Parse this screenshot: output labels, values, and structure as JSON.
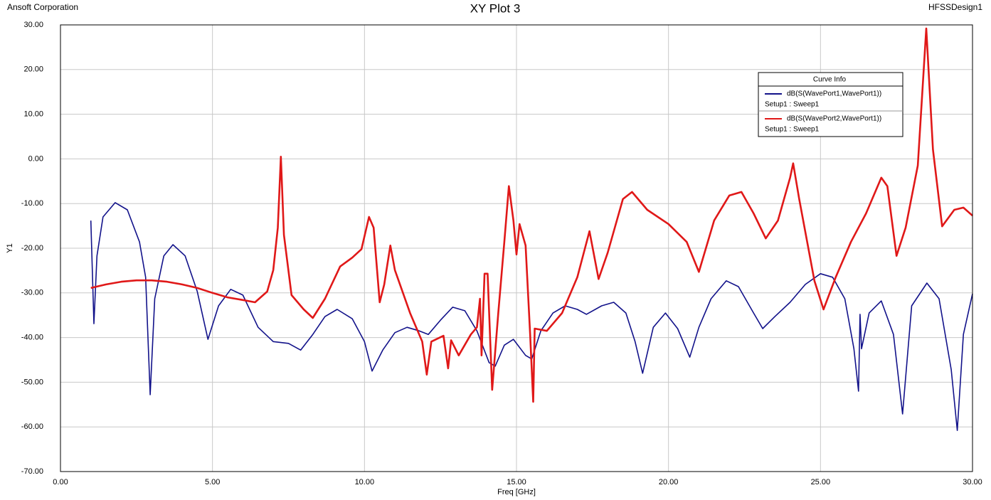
{
  "chart_data": {
    "type": "line",
    "title": "XY Plot 3",
    "company": "Ansoft Corporation",
    "design": "HFSSDesign1",
    "x_label": "Freq [GHz]",
    "y_label": "Y1",
    "legend_title": "Curve Info",
    "grid": true,
    "xlim": [
      0,
      30
    ],
    "ylim": [
      -70,
      30
    ],
    "xticks": [
      {
        "value": 0,
        "label": "0.00"
      },
      {
        "value": 5,
        "label": "5.00"
      },
      {
        "value": 10,
        "label": "10.00"
      },
      {
        "value": 15,
        "label": "15.00"
      },
      {
        "value": 20,
        "label": "20.00"
      },
      {
        "value": 25,
        "label": "25.00"
      },
      {
        "value": 30,
        "label": "30.00"
      }
    ],
    "yticks": [
      {
        "value": -70,
        "label": "-70.00"
      },
      {
        "value": -60,
        "label": "-60.00"
      },
      {
        "value": -50,
        "label": "-50.00"
      },
      {
        "value": -40,
        "label": "-40.00"
      },
      {
        "value": -30,
        "label": "-30.00"
      },
      {
        "value": -20,
        "label": "-20.00"
      },
      {
        "value": -10,
        "label": "-10.00"
      },
      {
        "value": 0,
        "label": "0.00"
      },
      {
        "value": 10,
        "label": "10.00"
      },
      {
        "value": 20,
        "label": "20.00"
      },
      {
        "value": 30,
        "label": "30.00"
      }
    ],
    "series": [
      {
        "name": "dB(S(WavePort1,WavePort1))",
        "setup": "Setup1 : Sweep1",
        "color": "#12128a",
        "x": [
          1.0,
          1.1,
          1.2,
          1.4,
          1.8,
          2.2,
          2.6,
          2.8,
          2.95,
          3.1,
          3.4,
          3.7,
          4.1,
          4.5,
          4.85,
          5.2,
          5.6,
          6.0,
          6.5,
          7.0,
          7.5,
          7.9,
          8.3,
          8.7,
          9.1,
          9.6,
          10.0,
          10.25,
          10.6,
          11.0,
          11.4,
          11.8,
          12.1,
          12.5,
          12.9,
          13.3,
          13.7,
          14.1,
          14.3,
          14.6,
          14.9,
          15.3,
          15.5,
          15.8,
          16.2,
          16.6,
          17.0,
          17.3,
          17.8,
          18.2,
          18.6,
          18.9,
          19.15,
          19.5,
          19.9,
          20.3,
          20.7,
          21.0,
          21.4,
          21.9,
          22.3,
          22.8,
          23.1,
          23.5,
          24.0,
          24.5,
          25.0,
          25.4,
          25.8,
          26.1,
          26.25,
          26.3,
          26.35,
          26.6,
          27.0,
          27.4,
          27.7,
          28.0,
          28.5,
          28.9,
          29.3,
          29.5,
          29.7,
          30.0
        ],
        "values": [
          -13.8,
          -36.9,
          -21.7,
          -13,
          -9.8,
          -11.4,
          -18.6,
          -26.5,
          -52.8,
          -31.3,
          -21.7,
          -19.2,
          -21.7,
          -29.7,
          -40.4,
          -32.9,
          -29.2,
          -30.5,
          -37.7,
          -40.9,
          -41.3,
          -42.8,
          -39.3,
          -35.3,
          -33.7,
          -35.8,
          -40.9,
          -47.5,
          -42.8,
          -38.9,
          -37.7,
          -38.5,
          -39.3,
          -36.1,
          -33.2,
          -34,
          -38.5,
          -45.6,
          -46.4,
          -41.7,
          -40.4,
          -44,
          -44.8,
          -38.5,
          -34.5,
          -32.9,
          -33.7,
          -34.8,
          -32.9,
          -32.1,
          -34.5,
          -40.9,
          -48,
          -37.7,
          -34.5,
          -38,
          -44.4,
          -37.7,
          -31.3,
          -27.3,
          -28.6,
          -34.5,
          -38,
          -35.3,
          -32.1,
          -28.1,
          -25.7,
          -26.5,
          -31.3,
          -42.5,
          -52,
          -34.8,
          -42.5,
          -34.5,
          -31.8,
          -39.3,
          -57.1,
          -32.9,
          -27.8,
          -31.3,
          -47.2,
          -60.8,
          -39.3,
          -30.2
        ]
      },
      {
        "name": "dB(S(WavePort2,WavePort1))",
        "setup": "Setup1 : Sweep1",
        "color": "#e01818",
        "x": [
          1.0,
          1.5,
          2.0,
          2.5,
          3.0,
          3.5,
          4.0,
          4.5,
          5.0,
          5.5,
          6.0,
          6.4,
          6.8,
          7.0,
          7.15,
          7.25,
          7.35,
          7.6,
          8.0,
          8.3,
          8.7,
          9.2,
          9.6,
          9.9,
          10.15,
          10.3,
          10.5,
          10.65,
          10.85,
          11.0,
          11.5,
          11.9,
          12.05,
          12.2,
          12.6,
          12.75,
          12.85,
          13.1,
          13.5,
          13.7,
          13.8,
          13.85,
          13.95,
          14.05,
          14.2,
          14.4,
          14.6,
          14.75,
          14.9,
          15.0,
          15.1,
          15.3,
          15.45,
          15.55,
          15.6,
          16.0,
          16.5,
          17.0,
          17.4,
          17.7,
          18.0,
          18.5,
          18.8,
          19.3,
          20.0,
          20.6,
          21.0,
          21.5,
          22.0,
          22.4,
          22.8,
          23.2,
          23.6,
          24.0,
          24.1,
          24.3,
          24.8,
          25.1,
          25.5,
          26.0,
          26.5,
          27.0,
          27.2,
          27.5,
          27.8,
          28.2,
          28.48,
          28.7,
          29.0,
          29.4,
          29.7,
          30.0
        ],
        "values": [
          -28.9,
          -28.1,
          -27.5,
          -27.2,
          -27.2,
          -27.5,
          -28.1,
          -28.9,
          -30,
          -31,
          -31.6,
          -32.1,
          -29.7,
          -24.9,
          -15.4,
          0.5,
          -17,
          -30.5,
          -33.7,
          -35.6,
          -31.3,
          -24.1,
          -22.1,
          -20.2,
          -13,
          -15.4,
          -32.1,
          -28.1,
          -19.4,
          -24.9,
          -34.5,
          -40.9,
          -48.3,
          -40.9,
          -39.6,
          -46.9,
          -40.6,
          -44,
          -39.3,
          -37.7,
          -31.3,
          -44,
          -25.7,
          -25.7,
          -51.7,
          -34.5,
          -18.6,
          -6.1,
          -13.8,
          -21.4,
          -14.6,
          -19.4,
          -39.3,
          -54.4,
          -38,
          -38.5,
          -34.5,
          -26.5,
          -16.2,
          -26.9,
          -21,
          -9,
          -7.4,
          -11.4,
          -14.6,
          -18.6,
          -25.3,
          -13.8,
          -8.2,
          -7.4,
          -12.2,
          -17.8,
          -13.8,
          -4.2,
          -1,
          -9,
          -27.3,
          -33.7,
          -26.5,
          -18.6,
          -12.2,
          -4.2,
          -6.1,
          -21.7,
          -15.4,
          -1.5,
          29.2,
          2.1,
          -15.1,
          -11.4,
          -10.9,
          -12.7
        ]
      }
    ]
  }
}
